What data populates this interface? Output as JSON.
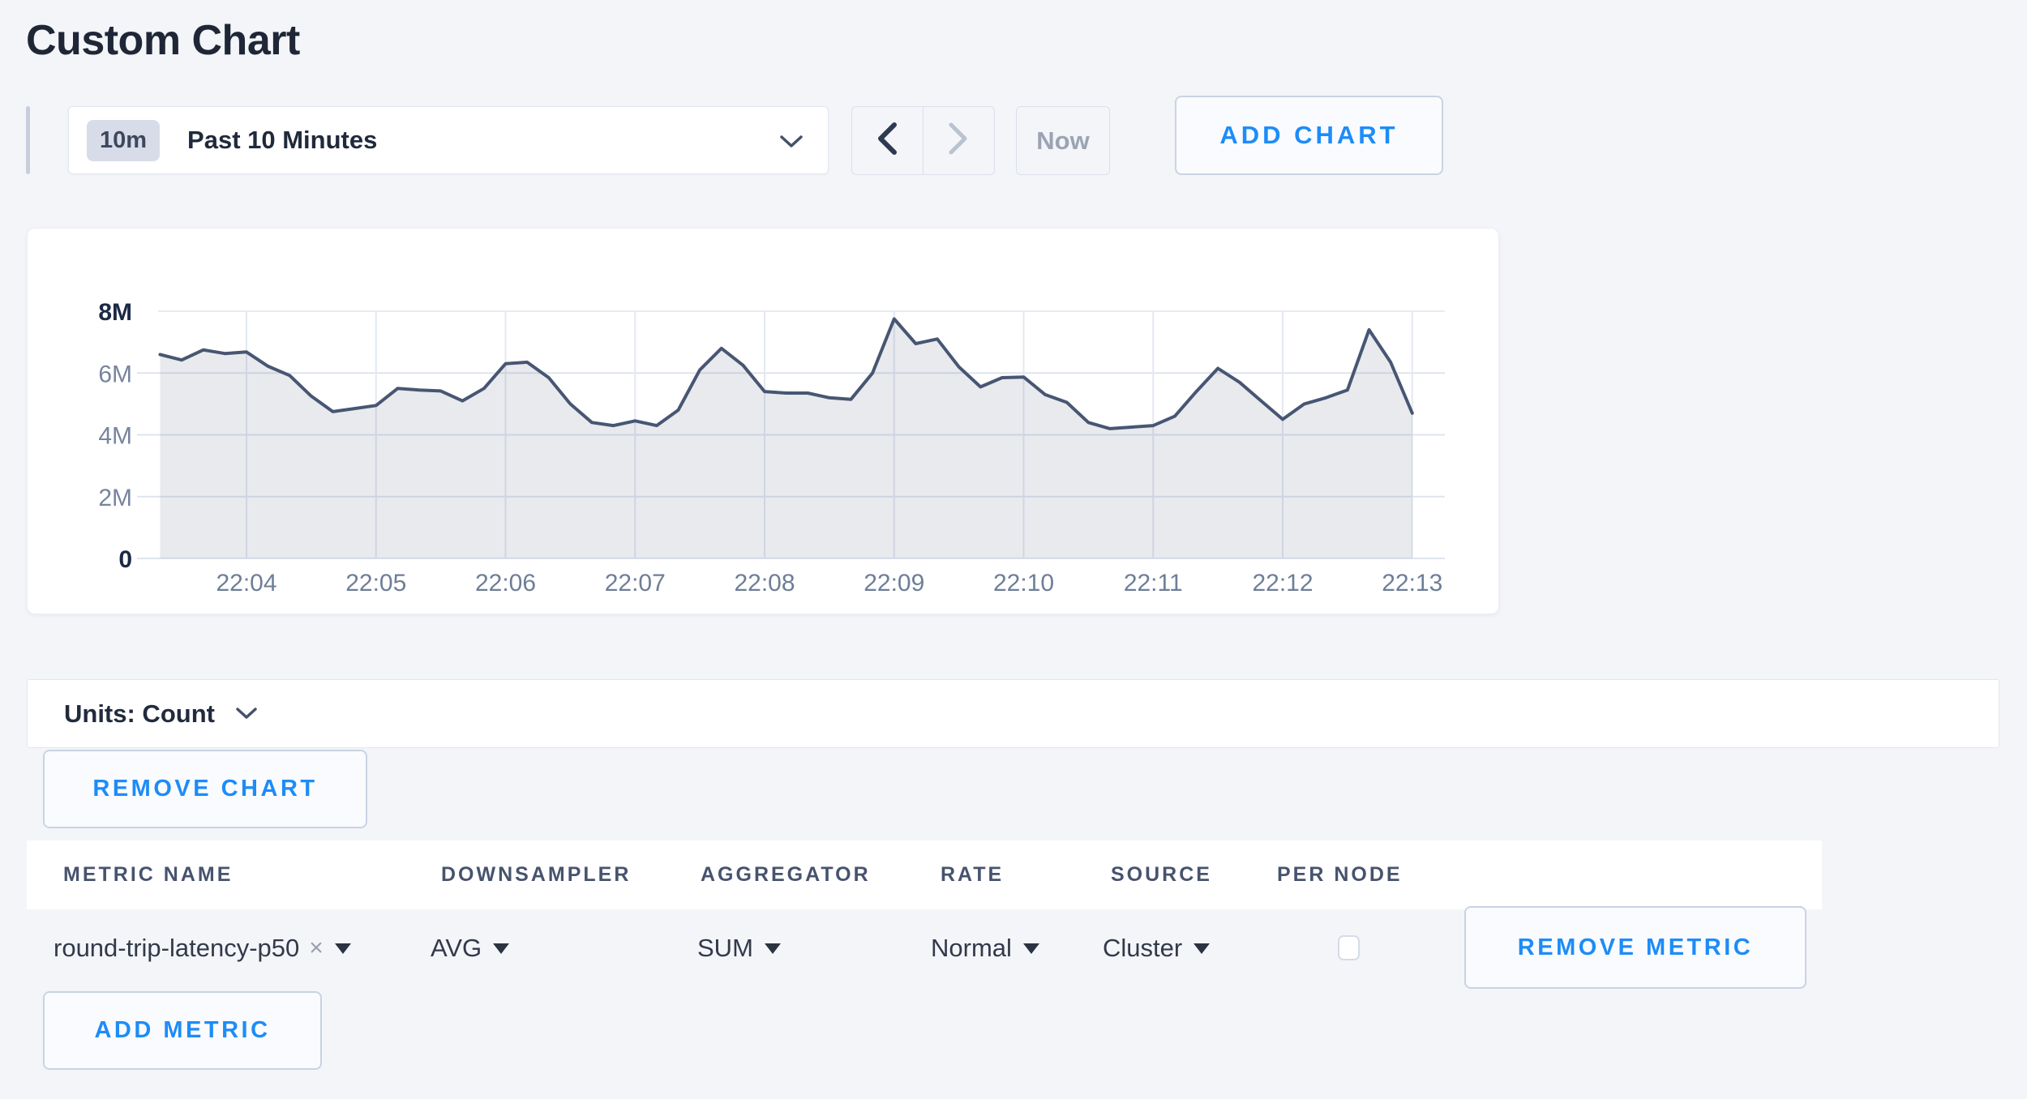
{
  "page": {
    "title": "Custom Chart"
  },
  "toolbar": {
    "time_badge": "10m",
    "time_label": "Past 10 Minutes",
    "now_label": "Now",
    "add_chart_label": "ADD CHART"
  },
  "chart_data": {
    "type": "area",
    "title": "",
    "xlabel": "",
    "ylabel": "",
    "value_scale": "millions",
    "units": "Count",
    "ylim_millions": [
      0,
      8
    ],
    "grid": true,
    "legend": false,
    "y_ticks": [
      {
        "value": 0,
        "label": "0",
        "bold": true
      },
      {
        "value": 2,
        "label": "2M",
        "bold": false
      },
      {
        "value": 4,
        "label": "4M",
        "bold": false
      },
      {
        "value": 6,
        "label": "6M",
        "bold": false
      },
      {
        "value": 8,
        "label": "8M",
        "bold": true
      }
    ],
    "x_ticks": [
      "22:04",
      "22:05",
      "22:06",
      "22:07",
      "22:08",
      "22:09",
      "22:10",
      "22:11",
      "22:12",
      "22:13"
    ],
    "x": [
      "22:03:20",
      "22:03:30",
      "22:03:40",
      "22:03:50",
      "22:04:00",
      "22:04:10",
      "22:04:20",
      "22:04:30",
      "22:04:40",
      "22:04:50",
      "22:05:00",
      "22:05:10",
      "22:05:20",
      "22:05:30",
      "22:05:40",
      "22:05:50",
      "22:06:00",
      "22:06:10",
      "22:06:20",
      "22:06:30",
      "22:06:40",
      "22:06:50",
      "22:07:00",
      "22:07:10",
      "22:07:20",
      "22:07:30",
      "22:07:40",
      "22:07:50",
      "22:08:00",
      "22:08:10",
      "22:08:20",
      "22:08:30",
      "22:08:40",
      "22:08:50",
      "22:09:00",
      "22:09:10",
      "22:09:20",
      "22:09:30",
      "22:09:40",
      "22:09:50",
      "22:10:00",
      "22:10:10",
      "22:10:20",
      "22:10:30",
      "22:10:40",
      "22:10:50",
      "22:11:00",
      "22:11:10",
      "22:11:20",
      "22:11:30",
      "22:11:40",
      "22:11:50",
      "22:12:00",
      "22:12:10",
      "22:12:20",
      "22:12:30",
      "22:12:40",
      "22:12:50",
      "22:13:00"
    ],
    "series": [
      {
        "name": "round-trip-latency-p50",
        "values_millions": [
          6.6,
          6.42,
          6.75,
          6.63,
          6.68,
          6.22,
          5.92,
          5.25,
          4.75,
          4.85,
          4.95,
          5.5,
          5.45,
          5.42,
          5.1,
          5.5,
          6.3,
          6.35,
          5.85,
          5.0,
          4.4,
          4.3,
          4.45,
          4.3,
          4.8,
          6.1,
          6.8,
          6.25,
          5.4,
          5.35,
          5.35,
          5.2,
          5.15,
          6.0,
          7.75,
          6.95,
          7.1,
          6.2,
          5.55,
          5.85,
          5.87,
          5.3,
          5.05,
          4.4,
          4.2,
          4.25,
          4.3,
          4.6,
          5.4,
          6.15,
          5.7,
          5.1,
          4.5,
          5.0,
          5.2,
          5.45,
          7.4,
          6.35,
          4.7
        ]
      }
    ]
  },
  "units_bar": {
    "label": "Units: Count"
  },
  "buttons": {
    "remove_chart": "REMOVE CHART",
    "remove_metric": "REMOVE METRIC",
    "add_metric": "ADD METRIC"
  },
  "metrics_table": {
    "headers": [
      "METRIC NAME",
      "DOWNSAMPLER",
      "AGGREGATOR",
      "RATE",
      "SOURCE",
      "PER NODE"
    ],
    "rows": [
      {
        "metric_name": "round-trip-latency-p50",
        "remove_glyph": "×",
        "downsampler": "AVG",
        "aggregator": "SUM",
        "rate": "Normal",
        "source": "Cluster",
        "per_node_checked": false
      }
    ]
  },
  "colors": {
    "accent_blue": "#1d8cf8",
    "line": "#475672",
    "area_fill": "rgba(72,86,112,0.12)",
    "page_bg": "#f4f5f9"
  }
}
